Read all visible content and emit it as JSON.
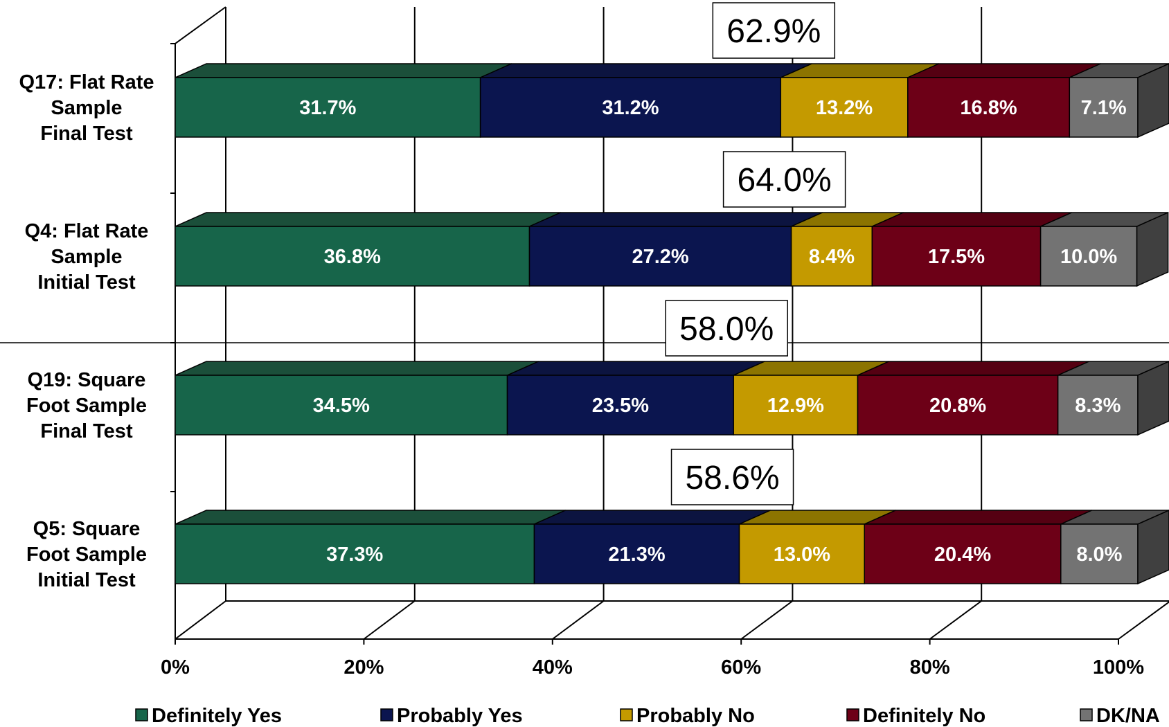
{
  "chart_data": {
    "type": "bar",
    "orientation": "horizontal",
    "stacked": true,
    "style": "3d",
    "categories": [
      [
        "Q17: Flat Rate",
        "Sample",
        "Final Test"
      ],
      [
        "Q4: Flat Rate",
        "Sample",
        "Initial Test"
      ],
      [
        "Q19: Square",
        "Foot Sample",
        "Final Test"
      ],
      [
        "Q5: Square",
        "Foot Sample",
        "Initial Test"
      ]
    ],
    "series": [
      {
        "name": "Definitely Yes",
        "color": "#17654a",
        "top_color": "#1b4f3a",
        "values": [
          31.7,
          36.8,
          34.5,
          37.3
        ],
        "labels": [
          "31.7%",
          "36.8%",
          "34.5%",
          "37.3%"
        ]
      },
      {
        "name": "Probably Yes",
        "color": "#0b154f",
        "top_color": "#0c1440",
        "values": [
          31.2,
          27.2,
          23.5,
          21.3
        ],
        "labels": [
          "31.2%",
          "27.2%",
          "23.5%",
          "21.3%"
        ]
      },
      {
        "name": "Probably No",
        "color": "#c49a00",
        "top_color": "#8c7400",
        "values": [
          13.2,
          8.4,
          12.9,
          13.0
        ],
        "labels": [
          "13.2%",
          "8.4%",
          "12.9%",
          "13.0%"
        ]
      },
      {
        "name": "Definitely No",
        "color": "#6d0017",
        "top_color": "#550012",
        "values": [
          16.8,
          17.5,
          20.8,
          20.4
        ],
        "labels": [
          "16.8%",
          "17.5%",
          "20.8%",
          "20.4%"
        ]
      },
      {
        "name": "DK/NA",
        "color": "#737373",
        "top_color": "#4d4d4d",
        "values": [
          7.1,
          10.0,
          8.3,
          8.0
        ],
        "labels": [
          "7.1%",
          "10.0%",
          "8.3%",
          "8.0%"
        ]
      }
    ],
    "callouts": [
      {
        "category_index": 0,
        "value": 62.9,
        "label": "62.9%"
      },
      {
        "category_index": 1,
        "value": 64.0,
        "label": "64.0%"
      },
      {
        "category_index": 2,
        "value": 58.0,
        "label": "58.0%"
      },
      {
        "category_index": 3,
        "value": 58.6,
        "label": "58.6%"
      }
    ],
    "x_ticks": [
      0,
      20,
      40,
      60,
      80,
      100
    ],
    "x_tick_labels": [
      "0%",
      "20%",
      "40%",
      "60%",
      "80%",
      "100%"
    ],
    "xlim": [
      0,
      100
    ],
    "grid": true,
    "legend_position": "bottom"
  }
}
